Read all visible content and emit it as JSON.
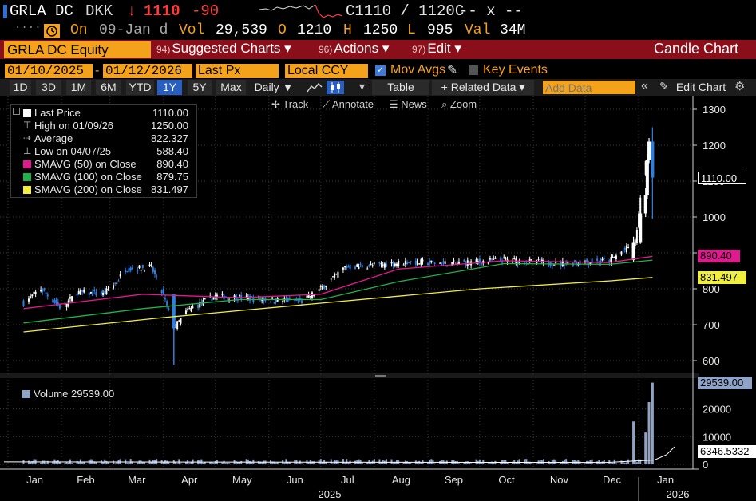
{
  "header": {
    "ticker": "GRLA DC",
    "currency": "DKK",
    "arrow": "↓",
    "last": "1110",
    "change": "-90",
    "quote": "C1110 / 1120C",
    "quote_extra": "-- x --",
    "dots": "....",
    "clock_icon": "clock-icon",
    "status": "On",
    "date": "09-Jan d",
    "vol_label": "Vol",
    "vol_value": "29,539",
    "open_label": "O",
    "open_value": "1210",
    "high_label": "H",
    "high_value": "1250",
    "low_label": "L",
    "low_value": "995",
    "val_label": "Val",
    "val_value": "34M"
  },
  "menubar": {
    "security": "GRLA DC Equity",
    "items": [
      {
        "num": "94)",
        "label": "Suggested Charts",
        "caret": "▾"
      },
      {
        "num": "96)",
        "label": "Actions",
        "caret": "▾"
      },
      {
        "num": "97)",
        "label": "Edit",
        "caret": "▾"
      }
    ],
    "title": "Candle Chart"
  },
  "params": {
    "start_date": "01/10/2025",
    "dash": "-",
    "end_date": "01/12/2026",
    "field": "Last Px",
    "ccy": "Local CCY",
    "mov_avgs": "Mov Avgs",
    "key_events": "Key Events"
  },
  "toolbar": {
    "periods": [
      "1D",
      "3D",
      "1M",
      "6M",
      "YTD",
      "1Y",
      "5Y",
      "Max"
    ],
    "selected_period": "1Y",
    "frequency": "Daily ▼",
    "table": "Table",
    "related": "+ Related Data ▾",
    "add_data_placeholder": "Add Data",
    "edit_chart": "Edit Chart"
  },
  "chart_tools": [
    "✢ Track",
    "⟋ Annotate",
    "☰ News",
    "⌕ Zoom"
  ],
  "legend": [
    {
      "label": "Last Price",
      "value": "1110.00",
      "color": "#ffffff",
      "kind": "box"
    },
    {
      "label": "High on 01/09/26",
      "value": "1250.00",
      "kind": "high"
    },
    {
      "label": "Average",
      "value": "822.327",
      "kind": "avg"
    },
    {
      "label": "Low on 04/07/25",
      "value": "588.40",
      "kind": "low"
    },
    {
      "label": "SMAVG (50)  on Close",
      "value": "890.40",
      "color": "#e0198f",
      "kind": "box"
    },
    {
      "label": "SMAVG (100)  on Close",
      "value": "879.75",
      "color": "#1fb44a",
      "kind": "box"
    },
    {
      "label": "SMAVG (200)  on Close",
      "value": "831.497",
      "color": "#f2ef3c",
      "kind": "box"
    }
  ],
  "volume_legend": {
    "label": "Volume 29539.00",
    "color": "#8fa3c6"
  },
  "price_tags": [
    {
      "label": "1110.00",
      "value": 1110,
      "bg": "#000000",
      "fg": "#ffffff",
      "border": "#ffffff"
    },
    {
      "label": "890.40",
      "value": 890.4,
      "bg": "#e0198f",
      "fg": "#000000"
    },
    {
      "label": "831.497",
      "value": 831.497,
      "bg": "#f2ef3c",
      "fg": "#000000"
    }
  ],
  "volume_tags": [
    {
      "label": "29539.00",
      "value": 29539,
      "bg": "#8fa3c6",
      "fg": "#000000"
    },
    {
      "label": "6346.5332",
      "value": 6346.5332,
      "bg": "#ffffff",
      "fg": "#000000"
    }
  ],
  "colors": {
    "up": "#ffffff",
    "down": "#2f7fe0",
    "sma50": "#e0198f",
    "sma100": "#1fb44a",
    "sma200": "#f2ef3c",
    "grid": "#3b3b3b",
    "volume": "#8fa3c6"
  },
  "chart_data": {
    "type": "candlestick",
    "price_axis": {
      "ticks": [
        600,
        700,
        800,
        900,
        1000,
        1100,
        1200,
        1300
      ],
      "ylim": [
        560,
        1320
      ]
    },
    "volume_axis": {
      "ticks": [
        0,
        10000,
        20000
      ],
      "ylim": [
        0,
        30000
      ]
    },
    "x_axis": {
      "months": [
        "Jan",
        "Feb",
        "Mar",
        "Apr",
        "May",
        "Jun",
        "Jul",
        "Aug",
        "Sep",
        "Oct",
        "Nov",
        "Dec",
        "Jan"
      ],
      "years": [
        "2025",
        "2026"
      ]
    },
    "close_series": [
      {
        "date": "2025-01-10",
        "v": 760
      },
      {
        "date": "2025-01-20",
        "v": 800
      },
      {
        "date": "2025-02-01",
        "v": 745
      },
      {
        "date": "2025-02-10",
        "v": 790
      },
      {
        "date": "2025-02-25",
        "v": 785
      },
      {
        "date": "2025-03-05",
        "v": 820
      },
      {
        "date": "2025-03-10",
        "v": 855
      },
      {
        "date": "2025-03-25",
        "v": 860
      },
      {
        "date": "2025-04-01",
        "v": 780
      },
      {
        "date": "2025-04-07",
        "v": 690
      },
      {
        "date": "2025-04-15",
        "v": 740
      },
      {
        "date": "2025-05-01",
        "v": 780
      },
      {
        "date": "2025-06-01",
        "v": 770
      },
      {
        "date": "2025-06-20",
        "v": 765
      },
      {
        "date": "2025-07-01",
        "v": 800
      },
      {
        "date": "2025-07-15",
        "v": 860
      },
      {
        "date": "2025-08-01",
        "v": 865
      },
      {
        "date": "2025-08-20",
        "v": 875
      },
      {
        "date": "2025-09-15",
        "v": 870
      },
      {
        "date": "2025-10-15",
        "v": 880
      },
      {
        "date": "2025-11-15",
        "v": 870
      },
      {
        "date": "2025-12-15",
        "v": 878
      },
      {
        "date": "2025-12-30",
        "v": 930
      },
      {
        "date": "2026-01-06",
        "v": 1200
      },
      {
        "date": "2026-01-09",
        "v": 1110
      }
    ],
    "sma50": [
      {
        "date": "2025-01-10",
        "v": 745
      },
      {
        "date": "2025-03-20",
        "v": 785
      },
      {
        "date": "2025-05-15",
        "v": 775
      },
      {
        "date": "2025-07-01",
        "v": 785
      },
      {
        "date": "2025-08-15",
        "v": 855
      },
      {
        "date": "2025-10-15",
        "v": 878
      },
      {
        "date": "2025-12-15",
        "v": 873
      },
      {
        "date": "2026-01-09",
        "v": 890.4
      }
    ],
    "sma100": [
      {
        "date": "2025-01-10",
        "v": 705
      },
      {
        "date": "2025-03-20",
        "v": 745
      },
      {
        "date": "2025-05-15",
        "v": 770
      },
      {
        "date": "2025-07-01",
        "v": 770
      },
      {
        "date": "2025-08-15",
        "v": 820
      },
      {
        "date": "2025-10-15",
        "v": 870
      },
      {
        "date": "2025-12-15",
        "v": 868
      },
      {
        "date": "2026-01-09",
        "v": 879.75
      }
    ],
    "sma200": [
      {
        "date": "2025-01-10",
        "v": 680
      },
      {
        "date": "2025-04-01",
        "v": 720
      },
      {
        "date": "2025-07-01",
        "v": 760
      },
      {
        "date": "2025-10-01",
        "v": 800
      },
      {
        "date": "2025-12-15",
        "v": 822
      },
      {
        "date": "2026-01-09",
        "v": 831.497
      }
    ],
    "volume_spikes": [
      {
        "date": "2025-12-29",
        "v": 15500
      },
      {
        "date": "2026-01-05",
        "v": 11500
      },
      {
        "date": "2026-01-07",
        "v": 22500
      },
      {
        "date": "2026-01-09",
        "v": 29539
      }
    ],
    "volume_ma_last": 6346.5332
  }
}
